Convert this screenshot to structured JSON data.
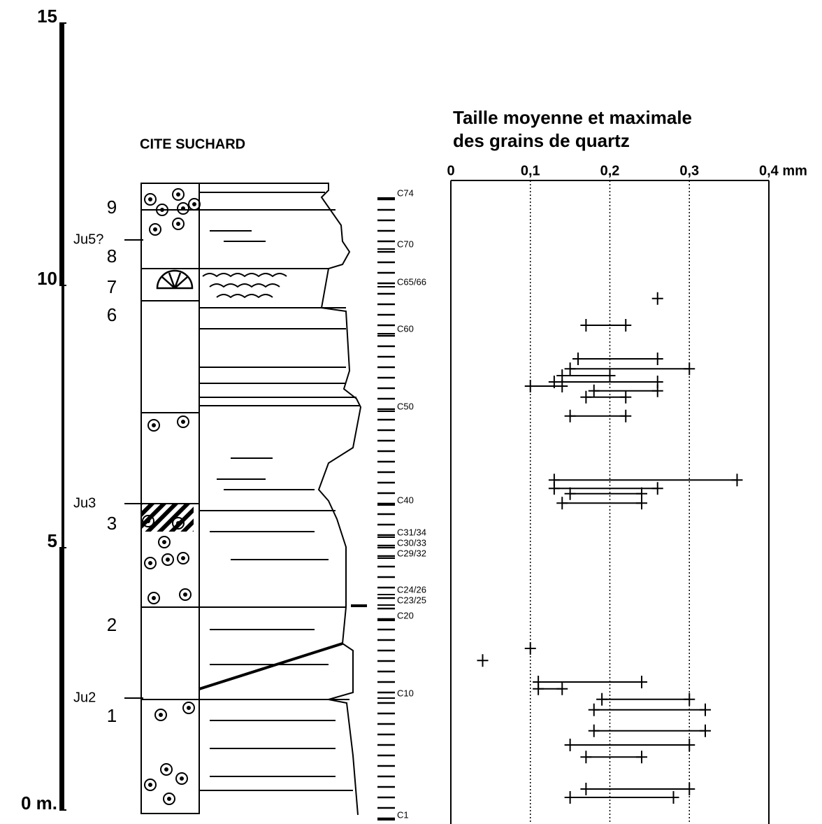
{
  "column": {
    "title": "CITE SUCHARD",
    "hlim": [
      0,
      15
    ],
    "hticks": [
      {
        "value": 0,
        "label": "0 m."
      },
      5,
      10,
      15
    ],
    "units": [
      "9",
      "8",
      "7",
      "6",
      "3",
      "2",
      "1"
    ],
    "surfaces": [
      "Ju5?",
      "Ju3",
      "Ju2"
    ],
    "samples": [
      "C74",
      "C70",
      "C65/66",
      "C60",
      "C50",
      "C40",
      "C31/34",
      "C30/33",
      "C29/32",
      "C24/26",
      "C23/25",
      "C20",
      "C10",
      "C1"
    ]
  },
  "chart_data": {
    "type": "range",
    "title": [
      "Taille moyenne et maximale",
      "des grains de quartz"
    ],
    "xlim": [
      0,
      0.4
    ],
    "xticks": [
      0,
      {
        "value": 0.1,
        "label": "0,1"
      },
      {
        "value": 0.2,
        "label": "0,2"
      },
      {
        "value": 0.3,
        "label": "0,3"
      },
      {
        "value": 0.4,
        "label": "0,4 mm"
      }
    ],
    "grid": true,
    "rows": [
      {
        "height": 9.75,
        "mean": 0.26,
        "max": null
      },
      {
        "height": 9.24,
        "mean": 0.17,
        "max": 0.22
      },
      {
        "height": 8.6,
        "mean": 0.16,
        "max": 0.26
      },
      {
        "height": 8.41,
        "mean": 0.15,
        "max": 0.3
      },
      {
        "height": 8.28,
        "mean": 0.14,
        "max": 0.2
      },
      {
        "height": 8.16,
        "mean": 0.13,
        "max": 0.26
      },
      {
        "height": 8.08,
        "mean": 0.1,
        "max": 0.14
      },
      {
        "height": 7.99,
        "mean": 0.18,
        "max": 0.26
      },
      {
        "height": 7.87,
        "mean": 0.17,
        "max": 0.22
      },
      {
        "height": 7.51,
        "mean": 0.15,
        "max": 0.22
      },
      {
        "height": 6.29,
        "mean": 0.13,
        "max": 0.36
      },
      {
        "height": 6.13,
        "mean": 0.13,
        "max": 0.26
      },
      {
        "height": 6.03,
        "mean": 0.15,
        "max": 0.24
      },
      {
        "height": 5.85,
        "mean": 0.14,
        "max": 0.24
      },
      {
        "height": 3.08,
        "mean": 0.1,
        "max": null
      },
      {
        "height": 2.85,
        "mean": 0.04,
        "max": null
      },
      {
        "height": 2.44,
        "mean": 0.11,
        "max": 0.24
      },
      {
        "height": 2.31,
        "mean": 0.11,
        "max": 0.14
      },
      {
        "height": 2.11,
        "mean": 0.19,
        "max": 0.3
      },
      {
        "height": 1.91,
        "mean": 0.18,
        "max": 0.32
      },
      {
        "height": 1.51,
        "mean": 0.18,
        "max": 0.32
      },
      {
        "height": 1.24,
        "mean": 0.15,
        "max": 0.3
      },
      {
        "height": 1.01,
        "mean": 0.17,
        "max": 0.24
      },
      {
        "height": 0.4,
        "mean": 0.17,
        "max": 0.3
      },
      {
        "height": 0.24,
        "mean": 0.15,
        "max": 0.28
      }
    ]
  }
}
